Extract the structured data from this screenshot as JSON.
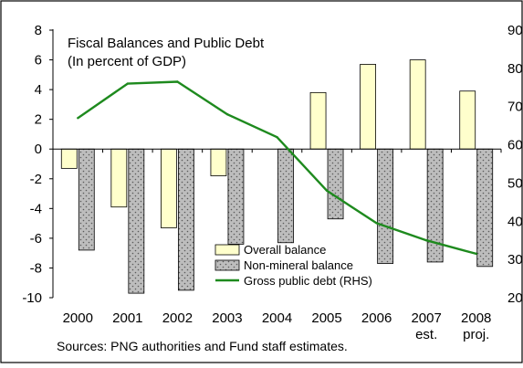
{
  "chart_data": {
    "type": "bar",
    "title": "Fiscal Balances and Public Debt",
    "subtitle": "(In percent of GDP)",
    "categories": [
      "2000",
      "2001",
      "2002",
      "2003",
      "2004",
      "2005",
      "2006",
      "2007",
      "2008"
    ],
    "category_sublabels": [
      "",
      "",
      "",
      "",
      "",
      "",
      "",
      "est.",
      "proj."
    ],
    "y_left": {
      "ylim": [
        -10,
        8
      ],
      "ticks": [
        "8",
        "6",
        "4",
        "2",
        "0",
        "-2",
        "-4",
        "-6",
        "-8",
        "-10"
      ]
    },
    "y_right": {
      "ylim": [
        20,
        90
      ],
      "ticks": [
        "90",
        "80",
        "70",
        "60",
        "50",
        "40",
        "30",
        "20"
      ]
    },
    "series": [
      {
        "name": "Overall balance",
        "type": "bar",
        "axis": "left",
        "color": "#FFFFCC",
        "values": [
          -1.3,
          -3.9,
          -5.3,
          -1.8,
          0.0,
          3.8,
          5.7,
          6.0,
          3.9
        ]
      },
      {
        "name": "Non-mineral balance",
        "type": "bar",
        "axis": "left",
        "color": "#BDBDBD",
        "pattern": "dotted",
        "values": [
          -6.8,
          -9.7,
          -9.5,
          -6.4,
          -6.3,
          -4.7,
          -7.7,
          -7.6,
          -7.9
        ]
      },
      {
        "name": "Gross public debt (RHS)",
        "type": "line",
        "axis": "right",
        "color": "#1E8A1E",
        "values": [
          67,
          76,
          76.5,
          68,
          62,
          48,
          39.5,
          35,
          31.5
        ]
      }
    ],
    "legend_position": "bottom-center",
    "source_note": "Sources: PNG authorities and Fund staff estimates."
  }
}
